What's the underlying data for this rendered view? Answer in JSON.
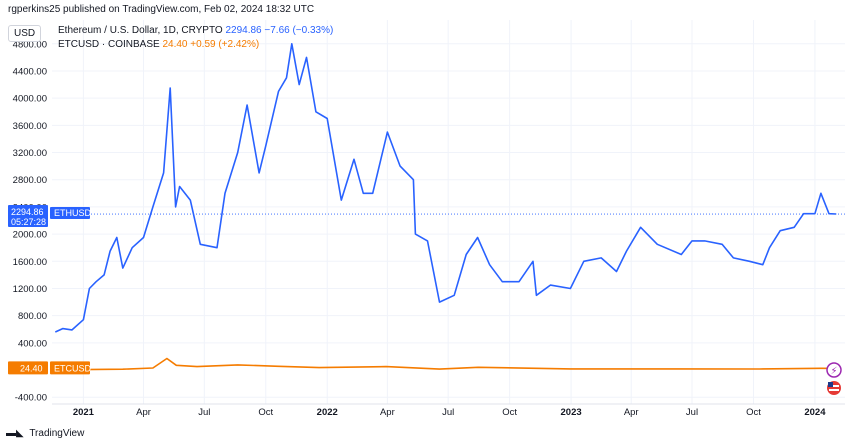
{
  "header": {
    "published": "rgperkins25 published on TradingView.com, Feb 02, 2024 18:32 UTC"
  },
  "currency": "USD",
  "legend": {
    "eth_name": "Ethereum / U.S. Dollar, 1D, CRYPTO",
    "eth_values": "2294.86  −7.66 (−0.33%)",
    "etc_name": "ETCUSD · COINBASE",
    "etc_values": "24.40  +0.59 (+2.42%)"
  },
  "footer": {
    "brand": "TradingView"
  },
  "colors": {
    "eth": "#2962ff",
    "etc": "#f57c00"
  },
  "chart_data": {
    "type": "line",
    "y_ticks": [
      -400,
      400,
      800,
      1200,
      1600,
      2000,
      2400,
      2800,
      3200,
      3600,
      4000,
      4400,
      4800
    ],
    "y_tick_labels": [
      "-400.00",
      "400.00",
      "800.00",
      "1200.00",
      "1600.00",
      "2000.00",
      "2400.00",
      "2800.00",
      "3200.00",
      "3600.00",
      "4000.00",
      "4400.00",
      "4800.00"
    ],
    "ylim": [
      -500,
      5150
    ],
    "xlim": [
      "2020-11-15",
      "2024-02-15"
    ],
    "x_ticks": [
      {
        "date": "2021-01-01",
        "label": "2021",
        "bold": true
      },
      {
        "date": "2021-04-01",
        "label": "Apr",
        "bold": false
      },
      {
        "date": "2021-07-01",
        "label": "Jul",
        "bold": false
      },
      {
        "date": "2021-10-01",
        "label": "Oct",
        "bold": false
      },
      {
        "date": "2022-01-01",
        "label": "2022",
        "bold": true
      },
      {
        "date": "2022-04-01",
        "label": "Apr",
        "bold": false
      },
      {
        "date": "2022-07-01",
        "label": "Jul",
        "bold": false
      },
      {
        "date": "2022-10-01",
        "label": "Oct",
        "bold": false
      },
      {
        "date": "2023-01-01",
        "label": "2023",
        "bold": true
      },
      {
        "date": "2023-04-01",
        "label": "Apr",
        "bold": false
      },
      {
        "date": "2023-07-01",
        "label": "Jul",
        "bold": false
      },
      {
        "date": "2023-10-01",
        "label": "Oct",
        "bold": false
      },
      {
        "date": "2024-01-01",
        "label": "2024",
        "bold": true
      }
    ],
    "series": [
      {
        "name": "ETHUSD",
        "color": "#2962ff",
        "last_value": 2294.86,
        "price_label": "2294.86",
        "countdown": "05:27:28",
        "tag": "ETHUSD",
        "points": [
          [
            "2020-11-20",
            560
          ],
          [
            "2020-12-01",
            610
          ],
          [
            "2020-12-15",
            590
          ],
          [
            "2021-01-01",
            740
          ],
          [
            "2021-01-10",
            1200
          ],
          [
            "2021-01-20",
            1300
          ],
          [
            "2021-02-01",
            1400
          ],
          [
            "2021-02-10",
            1750
          ],
          [
            "2021-02-20",
            1950
          ],
          [
            "2021-03-01",
            1500
          ],
          [
            "2021-03-15",
            1800
          ],
          [
            "2021-04-01",
            1950
          ],
          [
            "2021-04-15",
            2400
          ],
          [
            "2021-05-01",
            2900
          ],
          [
            "2021-05-11",
            4150
          ],
          [
            "2021-05-19",
            2400
          ],
          [
            "2021-05-25",
            2700
          ],
          [
            "2021-06-10",
            2500
          ],
          [
            "2021-06-25",
            1850
          ],
          [
            "2021-07-20",
            1800
          ],
          [
            "2021-08-01",
            2600
          ],
          [
            "2021-08-20",
            3200
          ],
          [
            "2021-09-03",
            3900
          ],
          [
            "2021-09-21",
            2900
          ],
          [
            "2021-10-01",
            3300
          ],
          [
            "2021-10-20",
            4100
          ],
          [
            "2021-11-01",
            4300
          ],
          [
            "2021-11-09",
            4800
          ],
          [
            "2021-11-20",
            4200
          ],
          [
            "2021-12-01",
            4600
          ],
          [
            "2021-12-15",
            3800
          ],
          [
            "2022-01-01",
            3700
          ],
          [
            "2022-01-22",
            2500
          ],
          [
            "2022-02-10",
            3100
          ],
          [
            "2022-02-24",
            2600
          ],
          [
            "2022-03-10",
            2600
          ],
          [
            "2022-04-01",
            3500
          ],
          [
            "2022-04-20",
            3000
          ],
          [
            "2022-05-10",
            2800
          ],
          [
            "2022-05-13",
            2000
          ],
          [
            "2022-05-31",
            1900
          ],
          [
            "2022-06-18",
            1000
          ],
          [
            "2022-07-10",
            1100
          ],
          [
            "2022-07-28",
            1700
          ],
          [
            "2022-08-14",
            1950
          ],
          [
            "2022-09-01",
            1550
          ],
          [
            "2022-09-20",
            1300
          ],
          [
            "2022-10-15",
            1300
          ],
          [
            "2022-11-05",
            1600
          ],
          [
            "2022-11-10",
            1100
          ],
          [
            "2022-12-01",
            1250
          ],
          [
            "2022-12-31",
            1200
          ],
          [
            "2023-01-20",
            1600
          ],
          [
            "2023-02-15",
            1650
          ],
          [
            "2023-03-10",
            1450
          ],
          [
            "2023-03-25",
            1750
          ],
          [
            "2023-04-15",
            2100
          ],
          [
            "2023-05-10",
            1850
          ],
          [
            "2023-06-15",
            1700
          ],
          [
            "2023-07-01",
            1900
          ],
          [
            "2023-07-20",
            1900
          ],
          [
            "2023-08-15",
            1850
          ],
          [
            "2023-09-01",
            1650
          ],
          [
            "2023-09-25",
            1600
          ],
          [
            "2023-10-15",
            1550
          ],
          [
            "2023-10-25",
            1800
          ],
          [
            "2023-11-10",
            2050
          ],
          [
            "2023-12-01",
            2100
          ],
          [
            "2023-12-15",
            2300
          ],
          [
            "2024-01-01",
            2300
          ],
          [
            "2024-01-10",
            2600
          ],
          [
            "2024-01-22",
            2300
          ],
          [
            "2024-02-02",
            2295
          ]
        ]
      },
      {
        "name": "ETCUSD",
        "color": "#f57c00",
        "last_value": 24.4,
        "price_label": "24.40",
        "tag": "ETCUSD",
        "points": [
          [
            "2020-11-20",
            5
          ],
          [
            "2021-01-01",
            6
          ],
          [
            "2021-03-01",
            12
          ],
          [
            "2021-04-15",
            30
          ],
          [
            "2021-05-06",
            170
          ],
          [
            "2021-05-20",
            70
          ],
          [
            "2021-06-20",
            50
          ],
          [
            "2021-08-20",
            75
          ],
          [
            "2021-10-20",
            55
          ],
          [
            "2021-12-20",
            35
          ],
          [
            "2022-03-30",
            50
          ],
          [
            "2022-06-18",
            14
          ],
          [
            "2022-08-15",
            40
          ],
          [
            "2022-12-31",
            16
          ],
          [
            "2023-06-10",
            17
          ],
          [
            "2023-10-10",
            15
          ],
          [
            "2024-01-10",
            25
          ],
          [
            "2024-02-02",
            24
          ]
        ]
      }
    ]
  }
}
